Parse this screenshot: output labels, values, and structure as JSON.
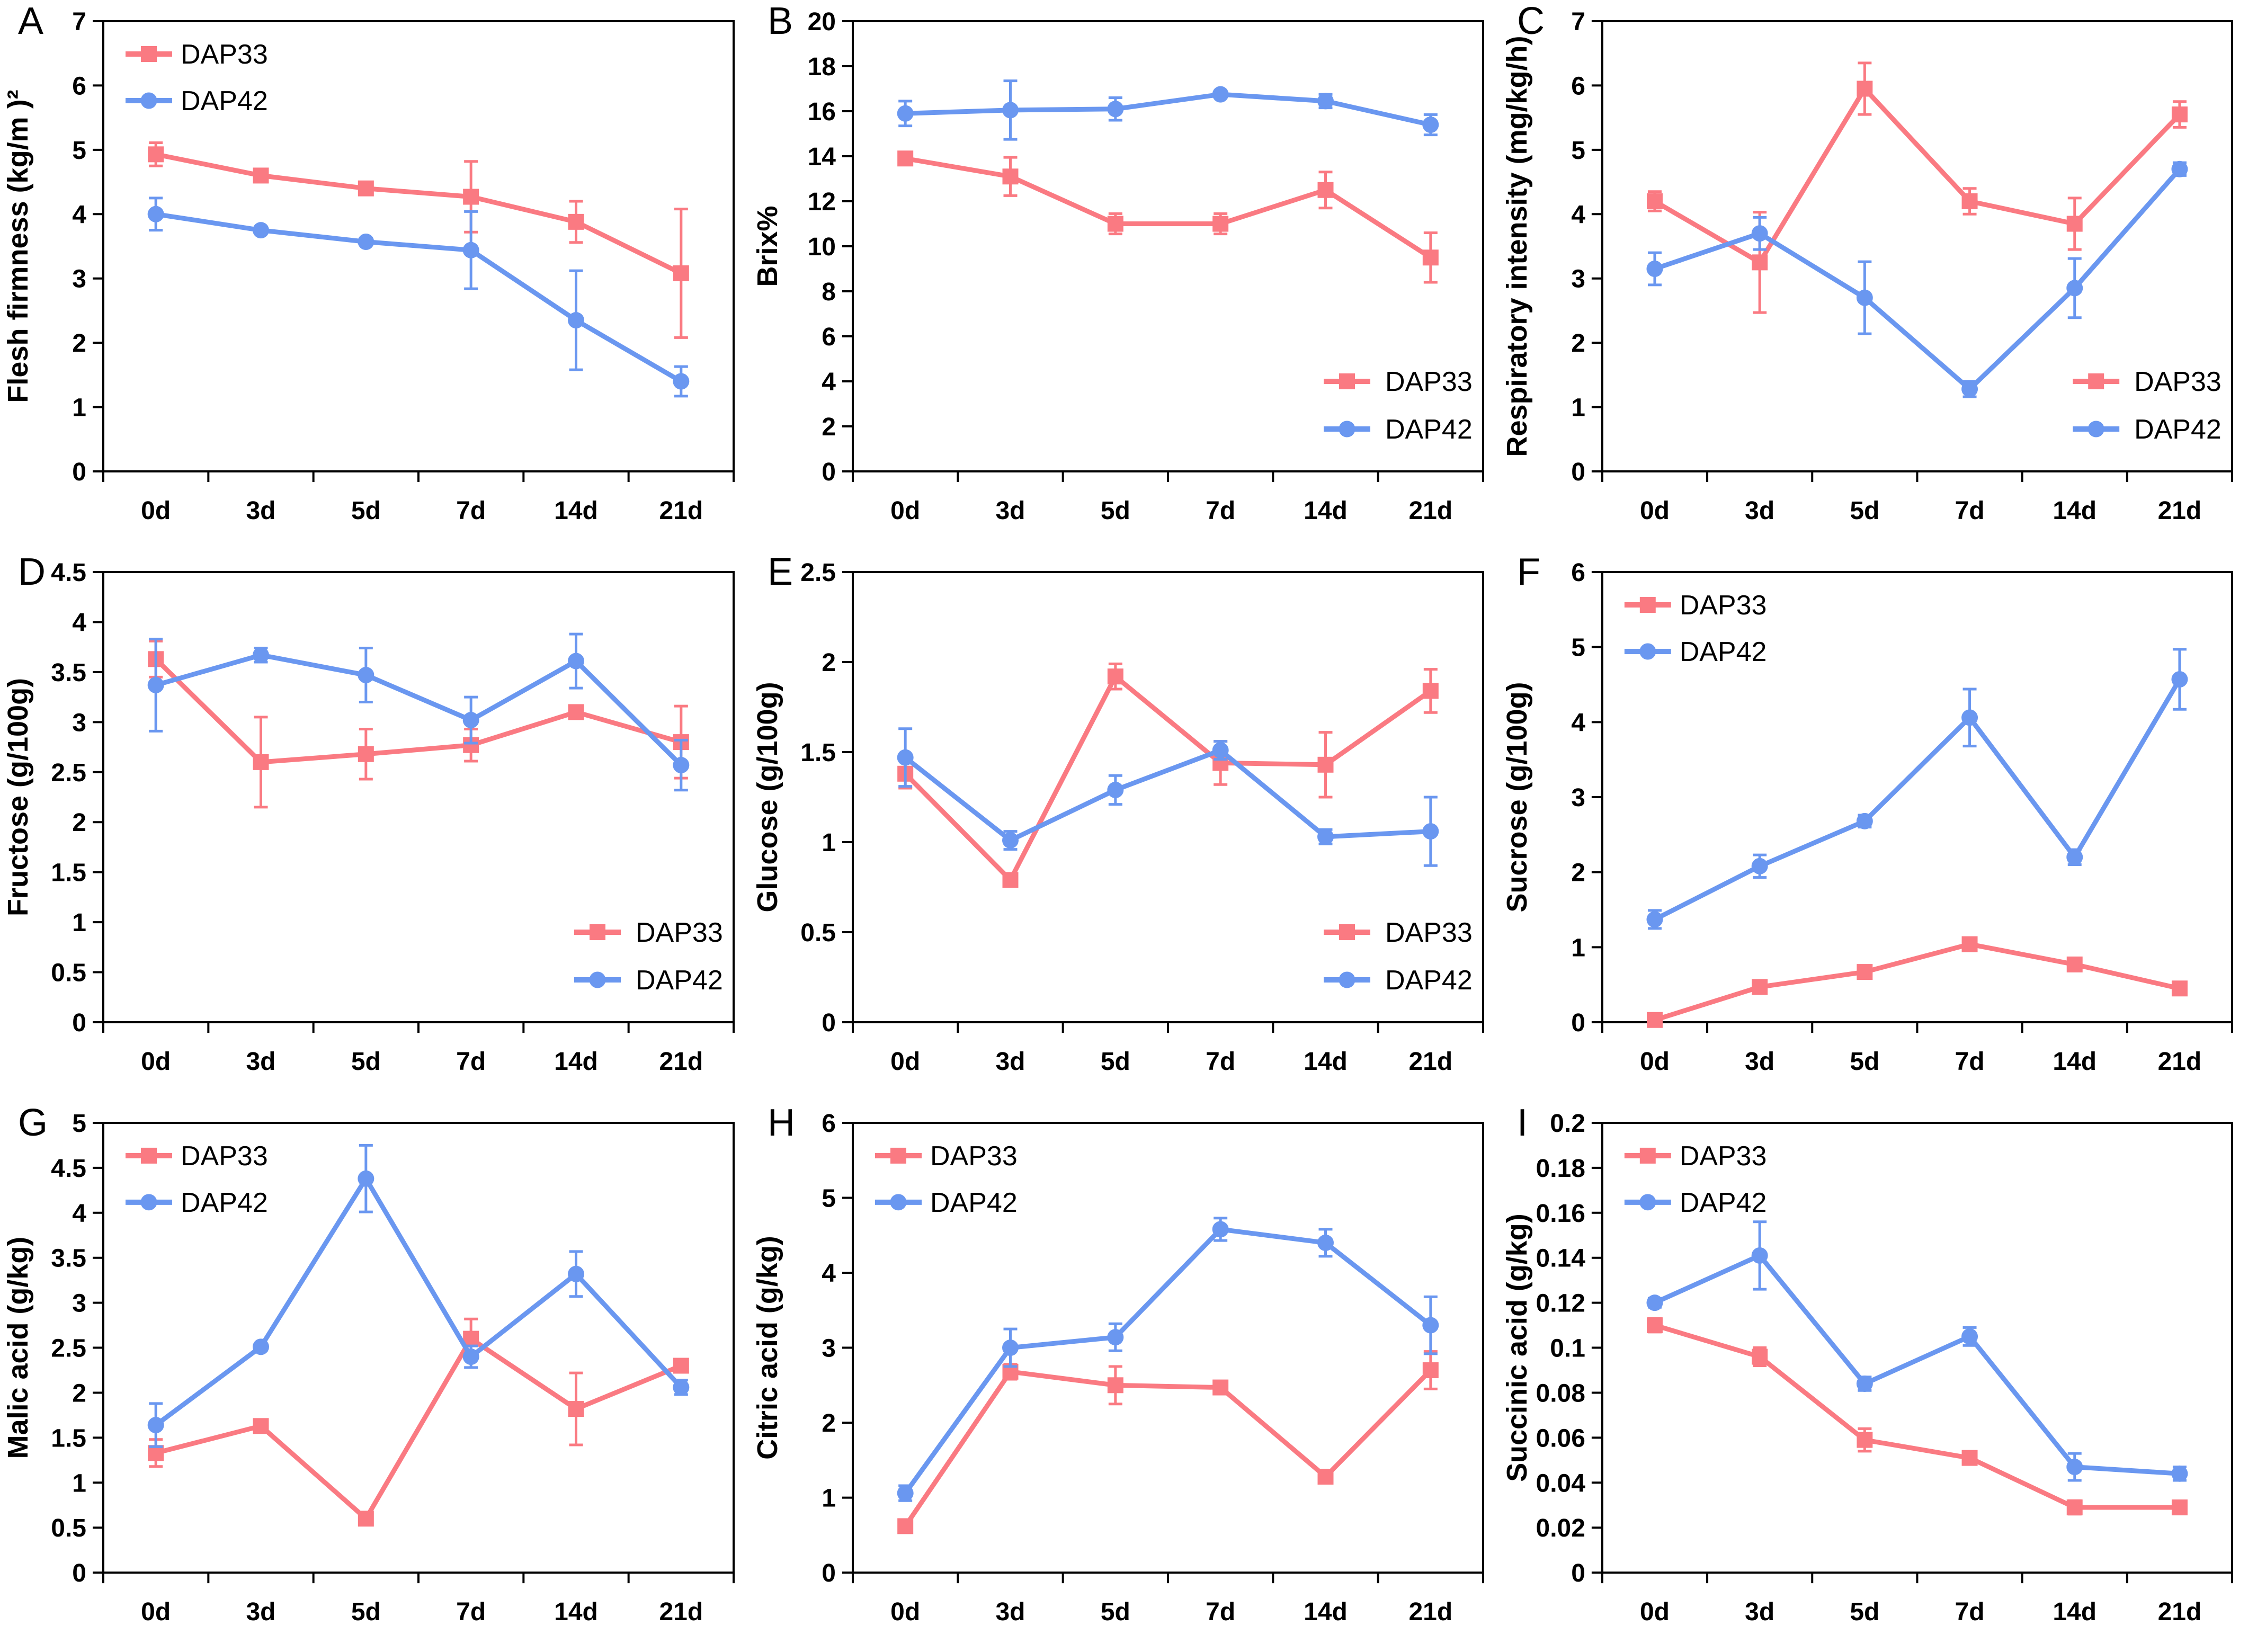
{
  "figure": {
    "background": "#ffffff",
    "series_names": [
      "DAP33",
      "DAP42"
    ],
    "colors": {
      "dap33": "#FA7A82",
      "dap42": "#6A97F0",
      "axis": "#000000"
    }
  },
  "chart_data": [
    {
      "type": "line",
      "panel": "A",
      "ylabel": "Flesh firmness (kg/m )²",
      "ylim": [
        0,
        7
      ],
      "ystep": 1,
      "yticks": [
        "0",
        "1",
        "2",
        "3",
        "4",
        "5",
        "6",
        "7"
      ],
      "categories": [
        "0d",
        "3d",
        "5d",
        "7d",
        "14d",
        "21d"
      ],
      "legend_position": "top-left",
      "series": [
        {
          "name": "DAP33",
          "marker": "square",
          "color": "#FA7A82",
          "values": [
            4.93,
            4.6,
            4.4,
            4.27,
            3.88,
            3.08
          ],
          "errors": [
            0.18,
            0.1,
            0.05,
            0.55,
            0.32,
            1.0
          ]
        },
        {
          "name": "DAP42",
          "marker": "circle",
          "color": "#6A97F0",
          "values": [
            4.0,
            3.75,
            3.57,
            3.44,
            2.35,
            1.4
          ],
          "errors": [
            0.25,
            0.05,
            0.05,
            0.6,
            0.77,
            0.23
          ]
        }
      ]
    },
    {
      "type": "line",
      "panel": "B",
      "ylabel": "Brix%",
      "ylim": [
        0,
        20
      ],
      "ystep": 2,
      "yticks": [
        "0",
        "2",
        "4",
        "6",
        "8",
        "10",
        "12",
        "14",
        "16",
        "18",
        "20"
      ],
      "categories": [
        "0d",
        "3d",
        "5d",
        "7d",
        "14d",
        "21d"
      ],
      "legend_position": "bottom-right",
      "series": [
        {
          "name": "DAP33",
          "marker": "square",
          "color": "#FA7A82",
          "values": [
            13.9,
            13.1,
            11.0,
            11.0,
            12.5,
            9.5
          ],
          "errors": [
            0.15,
            0.85,
            0.45,
            0.45,
            0.8,
            1.1
          ]
        },
        {
          "name": "DAP42",
          "marker": "circle",
          "color": "#6A97F0",
          "values": [
            15.9,
            16.05,
            16.1,
            16.75,
            16.45,
            15.4
          ],
          "errors": [
            0.55,
            1.3,
            0.5,
            0.12,
            0.3,
            0.45
          ]
        }
      ]
    },
    {
      "type": "line",
      "panel": "C",
      "ylabel": "Respiratory intensity (mg/kg/h)",
      "ylim": [
        0,
        7
      ],
      "ystep": 1,
      "yticks": [
        "0",
        "1",
        "2",
        "3",
        "4",
        "5",
        "6",
        "7"
      ],
      "categories": [
        "0d",
        "3d",
        "5d",
        "7d",
        "14d",
        "21d"
      ],
      "legend_position": "bottom-right",
      "series": [
        {
          "name": "DAP33",
          "marker": "square",
          "color": "#FA7A82",
          "values": [
            4.2,
            3.25,
            5.95,
            4.2,
            3.85,
            5.55
          ],
          "errors": [
            0.15,
            0.78,
            0.4,
            0.2,
            0.4,
            0.2
          ]
        },
        {
          "name": "DAP42",
          "marker": "circle",
          "color": "#6A97F0",
          "values": [
            3.15,
            3.7,
            2.7,
            1.28,
            2.85,
            4.7
          ],
          "errors": [
            0.25,
            0.25,
            0.56,
            0.12,
            0.46,
            0.1
          ]
        }
      ]
    },
    {
      "type": "line",
      "panel": "D",
      "ylabel": "Fructose (g/100g)",
      "ylim": [
        0,
        4.5
      ],
      "ystep": 0.5,
      "yticks": [
        "0",
        "0.5",
        "1",
        "1.5",
        "2",
        "2.5",
        "3",
        "3.5",
        "4",
        "4.5"
      ],
      "categories": [
        "0d",
        "3d",
        "5d",
        "7d",
        "14d",
        "21d"
      ],
      "legend_position": "bottom-right",
      "series": [
        {
          "name": "DAP33",
          "marker": "square",
          "color": "#FA7A82",
          "values": [
            3.63,
            2.6,
            2.68,
            2.77,
            3.1,
            2.8
          ],
          "errors": [
            0.18,
            0.45,
            0.25,
            0.16,
            0.06,
            0.36
          ]
        },
        {
          "name": "DAP42",
          "marker": "circle",
          "color": "#6A97F0",
          "values": [
            3.37,
            3.67,
            3.47,
            3.02,
            3.61,
            2.57
          ],
          "errors": [
            0.46,
            0.07,
            0.27,
            0.23,
            0.27,
            0.25
          ]
        }
      ]
    },
    {
      "type": "line",
      "panel": "E",
      "ylabel": "Glucose (g/100g)",
      "ylim": [
        0,
        2.5
      ],
      "ystep": 0.5,
      "yticks": [
        "0",
        "0.5",
        "1",
        "1.5",
        "2",
        "2.5"
      ],
      "categories": [
        "0d",
        "3d",
        "5d",
        "7d",
        "14d",
        "21d"
      ],
      "legend_position": "bottom-right",
      "series": [
        {
          "name": "DAP33",
          "marker": "square",
          "color": "#FA7A82",
          "values": [
            1.38,
            0.79,
            1.92,
            1.44,
            1.43,
            1.84
          ],
          "errors": [
            0.08,
            0.03,
            0.07,
            0.12,
            0.18,
            0.12
          ]
        },
        {
          "name": "DAP42",
          "marker": "circle",
          "color": "#6A97F0",
          "values": [
            1.47,
            1.01,
            1.29,
            1.51,
            1.03,
            1.06
          ],
          "errors": [
            0.16,
            0.05,
            0.08,
            0.05,
            0.04,
            0.19
          ]
        }
      ]
    },
    {
      "type": "line",
      "panel": "F",
      "ylabel": "Sucrose (g/100g)",
      "ylim": [
        0,
        6
      ],
      "ystep": 1,
      "yticks": [
        "0",
        "1",
        "2",
        "3",
        "4",
        "5",
        "6"
      ],
      "categories": [
        "0d",
        "3d",
        "5d",
        "7d",
        "14d",
        "21d"
      ],
      "legend_position": "top-left",
      "series": [
        {
          "name": "DAP33",
          "marker": "square",
          "color": "#FA7A82",
          "values": [
            0.03,
            0.47,
            0.67,
            1.04,
            0.77,
            0.45
          ],
          "errors": [
            0.02,
            0.03,
            0.04,
            0.04,
            0.03,
            0.04
          ]
        },
        {
          "name": "DAP42",
          "marker": "circle",
          "color": "#6A97F0",
          "values": [
            1.37,
            2.08,
            2.68,
            4.06,
            2.2,
            4.57
          ],
          "errors": [
            0.12,
            0.15,
            0.08,
            0.38,
            0.1,
            0.4
          ]
        }
      ]
    },
    {
      "type": "line",
      "panel": "G",
      "ylabel": "Malic acid (g/kg)",
      "ylim": [
        0,
        5
      ],
      "ystep": 0.5,
      "yticks": [
        "0",
        "0.5",
        "1",
        "1.5",
        "2",
        "2.5",
        "3",
        "3.5",
        "4",
        "4.5",
        "5"
      ],
      "categories": [
        "0d",
        "3d",
        "5d",
        "7d",
        "14d",
        "21d"
      ],
      "legend_position": "top-left",
      "series": [
        {
          "name": "DAP33",
          "marker": "square",
          "color": "#FA7A82",
          "values": [
            1.33,
            1.63,
            0.6,
            2.6,
            1.82,
            2.3
          ],
          "errors": [
            0.15,
            0.07,
            0.07,
            0.22,
            0.4,
            0.06
          ]
        },
        {
          "name": "DAP42",
          "marker": "circle",
          "color": "#6A97F0",
          "values": [
            1.64,
            2.51,
            4.38,
            2.4,
            3.32,
            2.06
          ],
          "errors": [
            0.24,
            0.04,
            0.37,
            0.12,
            0.25,
            0.08
          ]
        }
      ]
    },
    {
      "type": "line",
      "panel": "H",
      "ylabel": "Citric acid (g/kg)",
      "ylim": [
        0,
        6
      ],
      "ystep": 1,
      "yticks": [
        "0",
        "1",
        "2",
        "3",
        "4",
        "5",
        "6"
      ],
      "categories": [
        "0d",
        "3d",
        "5d",
        "7d",
        "14d",
        "21d"
      ],
      "legend_position": "top-left",
      "series": [
        {
          "name": "DAP33",
          "marker": "square",
          "color": "#FA7A82",
          "values": [
            0.62,
            2.68,
            2.5,
            2.47,
            1.28,
            2.7
          ],
          "errors": [
            0.06,
            0.1,
            0.25,
            0.05,
            0.08,
            0.25
          ]
        },
        {
          "name": "DAP42",
          "marker": "circle",
          "color": "#6A97F0",
          "values": [
            1.06,
            3.0,
            3.14,
            4.58,
            4.4,
            3.3
          ],
          "errors": [
            0.1,
            0.25,
            0.18,
            0.15,
            0.18,
            0.38
          ]
        }
      ]
    },
    {
      "type": "line",
      "panel": "I",
      "ylabel": "Succinic acid (g/kg)",
      "ylim": [
        0,
        0.2
      ],
      "ystep": 0.02,
      "yticks": [
        "0",
        "0.02",
        "0.04",
        "0.06",
        "0.08",
        "0.1",
        "0.12",
        "0.14",
        "0.16",
        "0.18",
        "0.2"
      ],
      "categories": [
        "0d",
        "3d",
        "5d",
        "7d",
        "14d",
        "21d"
      ],
      "legend_position": "top-left",
      "series": [
        {
          "name": "DAP33",
          "marker": "square",
          "color": "#FA7A82",
          "values": [
            0.11,
            0.096,
            0.059,
            0.051,
            0.029,
            0.029
          ],
          "errors": [
            0.003,
            0.004,
            0.005,
            0.002,
            0.003,
            0.002
          ]
        },
        {
          "name": "DAP42",
          "marker": "circle",
          "color": "#6A97F0",
          "values": [
            0.12,
            0.141,
            0.084,
            0.105,
            0.047,
            0.044
          ],
          "errors": [
            0.002,
            0.015,
            0.003,
            0.004,
            0.006,
            0.003
          ]
        }
      ]
    }
  ]
}
